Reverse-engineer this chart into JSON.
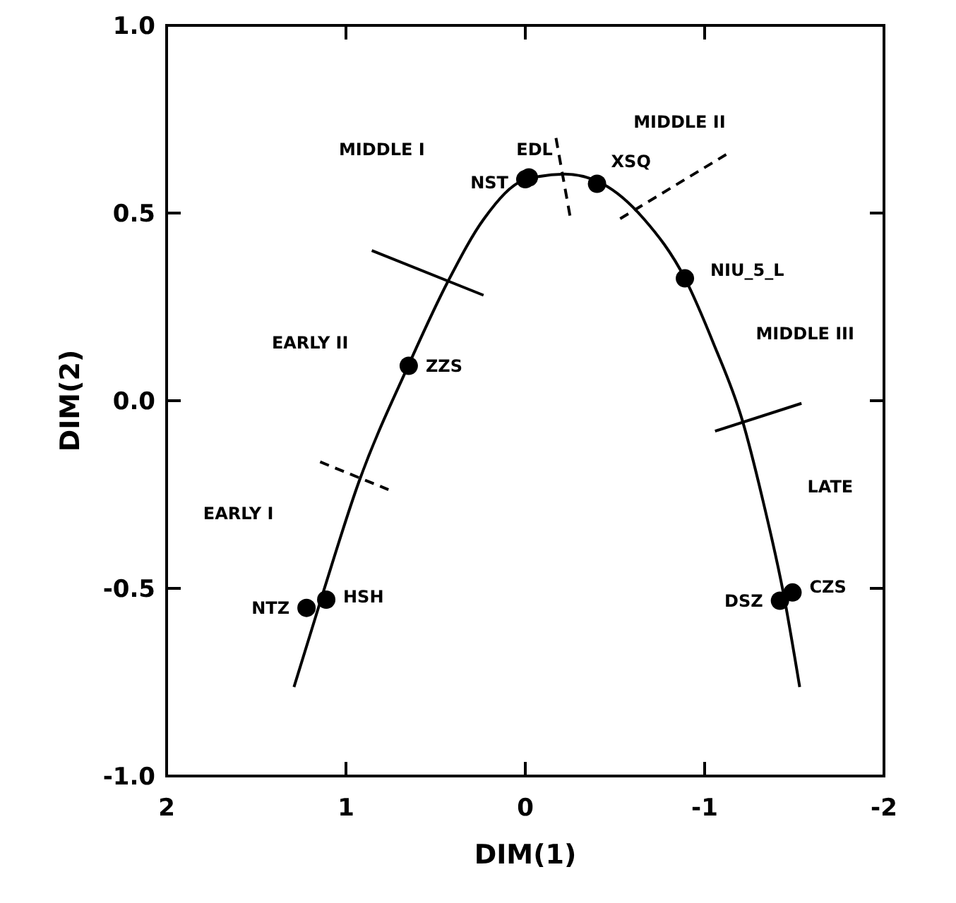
{
  "chart_data": {
    "type": "scatter",
    "xlabel": "DIM(1)",
    "ylabel": "DIM(2)",
    "xlim": [
      2,
      -2
    ],
    "ylim": [
      -1,
      1
    ],
    "xticks": [
      2,
      1,
      0,
      -1,
      -2
    ],
    "yticks": [
      {
        "value": -1,
        "label": "-1.0"
      },
      {
        "value": -0.5,
        "label": "-0.5"
      },
      {
        "value": 0,
        "label": "0.0"
      },
      {
        "value": 0.5,
        "label": "0.5"
      },
      {
        "value": 1,
        "label": "1.0"
      }
    ],
    "grid": false,
    "marker": "circle",
    "series": [
      {
        "type": "line",
        "color": "#000000",
        "marker": "none",
        "line_style": "solid",
        "x": [
          1.29,
          1.13,
          0.93,
          0.65,
          0.43,
          0.23,
          0.0,
          -0.22,
          -0.43,
          -0.66,
          -0.89,
          -1.05,
          -1.21,
          -1.32,
          -1.44,
          -1.53
        ],
        "values": [
          -0.763,
          -0.515,
          -0.219,
          0.096,
          0.319,
          0.485,
          0.589,
          0.604,
          0.578,
          0.485,
          0.326,
          0.152,
          -0.052,
          -0.256,
          -0.515,
          -0.763
        ]
      },
      {
        "color": "#000000",
        "x": [
          1.22,
          1.11,
          0.65,
          0.0,
          -0.02,
          -0.4,
          -0.89,
          -1.42,
          -1.49
        ],
        "values": [
          -0.552,
          -0.53,
          0.093,
          0.59,
          0.595,
          0.578,
          0.326,
          -0.533,
          -0.511
        ]
      },
      {
        "type": "line",
        "color": "#000000",
        "marker": "none",
        "line_style": "solid",
        "x": [
          0.856,
          0.233
        ],
        "values": [
          0.4,
          0.281
        ]
      },
      {
        "type": "line",
        "color": "#000000",
        "marker": "none",
        "line_style": "dashed",
        "x": [
          1.144,
          0.763
        ],
        "values": [
          -0.163,
          -0.237
        ]
      },
      {
        "type": "line",
        "color": "#000000",
        "marker": "none",
        "line_style": "dashed",
        "x": [
          -0.171,
          -0.249
        ],
        "values": [
          0.7,
          0.493
        ]
      },
      {
        "type": "line",
        "color": "#000000",
        "marker": "none",
        "line_style": "dashed",
        "x": [
          -0.529,
          -1.12
        ],
        "values": [
          0.485,
          0.656
        ]
      },
      {
        "type": "line",
        "color": "#000000",
        "marker": "none",
        "line_style": "solid",
        "x": [
          -1.058,
          -1.54
        ],
        "values": [
          -0.081,
          -0.007
        ]
      }
    ],
    "annotations": [
      {
        "text": "NTZ",
        "x": 1.22,
        "y": -0.552
      },
      {
        "text": "HSH",
        "x": 1.11,
        "y": -0.53
      },
      {
        "text": "ZZS",
        "x": 0.65,
        "y": 0.093
      },
      {
        "text": "NST",
        "x": 0.0,
        "y": 0.59
      },
      {
        "text": "EDL",
        "x": -0.02,
        "y": 0.595
      },
      {
        "text": "XSQ",
        "x": -0.4,
        "y": 0.578
      },
      {
        "text": "NIU_5_L",
        "x": -0.89,
        "y": 0.326
      },
      {
        "text": "DSZ",
        "x": -1.42,
        "y": -0.533
      },
      {
        "text": "CZS",
        "x": -1.49,
        "y": -0.511
      },
      "MIDDLE I",
      "MIDDLE II",
      "EARLY II",
      "MIDDLE III",
      "EARLY I",
      "LATE"
    ]
  }
}
